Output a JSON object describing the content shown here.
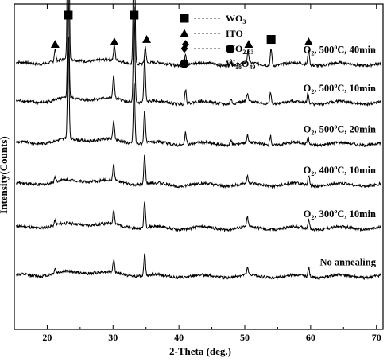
{
  "chart_data": {
    "type": "line",
    "xlabel": "2-Theta (deg.)",
    "ylabel": "Intensity(Counts)",
    "xlim": [
      15,
      71
    ],
    "xticks": [
      20,
      30,
      40,
      50,
      60,
      70
    ],
    "xtick_labels": [
      "20",
      "30",
      "40",
      "50",
      "60",
      "70"
    ],
    "y_scale": "arbitrary, vertically offset patterns",
    "grid": false,
    "legend": {
      "placement": "top-center",
      "entries": [
        {
          "marker": "square",
          "base": "WO",
          "sub": "3",
          "tail": "",
          "tail_sub": ""
        },
        {
          "marker": "triangle",
          "base": "ITO",
          "sub": "",
          "tail": "",
          "tail_sub": ""
        },
        {
          "marker": "diamond",
          "base": "WO",
          "sub": "2.83",
          "tail": "",
          "tail_sub": ""
        },
        {
          "marker": "circle",
          "base": "W",
          "sub": "18",
          "tail": "O",
          "tail_sub": "49"
        }
      ]
    },
    "series": [
      {
        "name": "O2, 500°C, 40min",
        "label_parts": [
          "O",
          "2",
          ", 500",
          "o",
          "C, 40min"
        ],
        "baseline": 1.1,
        "peaks": [
          {
            "x": 21.2,
            "h": 0.05
          },
          {
            "x": 23.2,
            "h": 1.0
          },
          {
            "x": 30.2,
            "h": 0.06
          },
          {
            "x": 33.2,
            "h": 0.7
          },
          {
            "x": 34.9,
            "h": 0.07
          },
          {
            "x": 41.0,
            "h": 0.05
          },
          {
            "x": 47.9,
            "h": 0.03
          },
          {
            "x": 50.5,
            "h": 0.05
          },
          {
            "x": 54.0,
            "h": 0.07
          },
          {
            "x": 59.7,
            "h": 0.06
          }
        ]
      },
      {
        "name": "O2, 500°C, 10min",
        "label_parts": [
          "O",
          "2",
          ", 500",
          "o",
          "C, 10min"
        ],
        "baseline": 0.94,
        "peaks": [
          {
            "x": 23.2,
            "h": 0.44
          },
          {
            "x": 30.1,
            "h": 0.1
          },
          {
            "x": 33.2,
            "h": 0.4
          },
          {
            "x": 34.8,
            "h": 0.18
          },
          {
            "x": 41.0,
            "h": 0.06
          },
          {
            "x": 47.9,
            "h": 0.02
          },
          {
            "x": 50.4,
            "h": 0.03
          },
          {
            "x": 53.9,
            "h": 0.05
          },
          {
            "x": 59.6,
            "h": 0.04
          }
        ]
      },
      {
        "name": "O2, 500°C, 20min",
        "label_parts": [
          "O",
          "2",
          ", 500",
          "o",
          "C, 20min"
        ],
        "baseline": 0.77,
        "peaks": [
          {
            "x": 23.2,
            "h": 0.42
          },
          {
            "x": 30.1,
            "h": 0.08
          },
          {
            "x": 33.2,
            "h": 0.26
          },
          {
            "x": 34.8,
            "h": 0.14
          },
          {
            "x": 41.0,
            "h": 0.05
          },
          {
            "x": 47.9,
            "h": 0.02
          },
          {
            "x": 50.4,
            "h": 0.03
          },
          {
            "x": 53.9,
            "h": 0.04
          },
          {
            "x": 59.6,
            "h": 0.03
          }
        ]
      },
      {
        "name": "O2, 400°C, 10min",
        "label_parts": [
          "O",
          "2",
          ", 400",
          "o",
          "C, 10min"
        ],
        "baseline": 0.6,
        "peaks": [
          {
            "x": 21.2,
            "h": 0.02
          },
          {
            "x": 30.1,
            "h": 0.07
          },
          {
            "x": 34.8,
            "h": 0.12
          },
          {
            "x": 50.4,
            "h": 0.03
          },
          {
            "x": 59.7,
            "h": 0.04
          }
        ]
      },
      {
        "name": "O2, 300°C, 10min",
        "label_parts": [
          "O",
          "2",
          ", 300",
          "o",
          "C, 10min"
        ],
        "baseline": 0.42,
        "peaks": [
          {
            "x": 21.2,
            "h": 0.02
          },
          {
            "x": 30.1,
            "h": 0.06
          },
          {
            "x": 34.8,
            "h": 0.11
          },
          {
            "x": 50.4,
            "h": 0.04
          },
          {
            "x": 59.7,
            "h": 0.04
          }
        ]
      },
      {
        "name": "No annealing",
        "label_parts": [
          "No annealing",
          "",
          "",
          "",
          ""
        ],
        "baseline": 0.22,
        "peaks": [
          {
            "x": 21.2,
            "h": 0.02
          },
          {
            "x": 30.1,
            "h": 0.05
          },
          {
            "x": 34.8,
            "h": 0.09
          },
          {
            "x": 50.4,
            "h": 0.03
          },
          {
            "x": 59.7,
            "h": 0.04
          }
        ]
      }
    ],
    "phase_markers": [
      {
        "phase": "WO3",
        "marker": "square",
        "x": 23.2
      },
      {
        "phase": "WO3",
        "marker": "square",
        "x": 33.2
      },
      {
        "phase": "WO3",
        "marker": "square",
        "x": 54.0
      },
      {
        "phase": "ITO",
        "marker": "triangle",
        "x": 21.2
      },
      {
        "phase": "ITO",
        "marker": "triangle",
        "x": 30.2
      },
      {
        "phase": "ITO",
        "marker": "triangle",
        "x": 35.1
      },
      {
        "phase": "ITO",
        "marker": "triangle",
        "x": 50.6
      },
      {
        "phase": "ITO",
        "marker": "triangle",
        "x": 59.7
      },
      {
        "phase": "WO2.83",
        "marker": "diamond",
        "x": 41.0
      },
      {
        "phase": "W18O49",
        "marker": "circle",
        "x": 47.8
      }
    ]
  }
}
